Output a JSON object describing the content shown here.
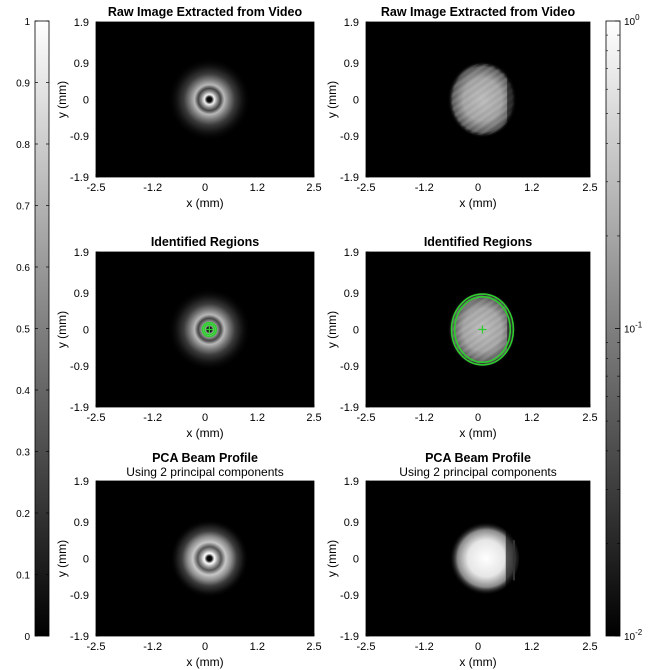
{
  "chart_data": [
    {
      "type": "heatmap",
      "panel": "top-left",
      "title": "Raw Image Extracted from Video",
      "xlabel": "x (mm)",
      "ylabel": "y (mm)",
      "xticks": [
        "-2.5",
        "-1.2",
        "0",
        "1.2",
        "2.5"
      ],
      "yticks": [
        "1.9",
        "0.9",
        "0",
        "-0.9",
        "-1.9"
      ],
      "xlim": [
        -2.5,
        2.5
      ],
      "ylim": [
        -1.9,
        1.9
      ],
      "content": "ring",
      "center": [
        0.1,
        0.0
      ]
    },
    {
      "type": "heatmap",
      "panel": "top-right",
      "title": "Raw Image Extracted from Video",
      "xlabel": "x (mm)",
      "ylabel": "y (mm)",
      "xticks": [
        "-2.5",
        "-1.2",
        "0",
        "1.2",
        "2.5"
      ],
      "yticks": [
        "1.9",
        "0.9",
        "0",
        "-0.9",
        "-1.9"
      ],
      "xlim": [
        -2.5,
        2.5
      ],
      "ylim": [
        -1.9,
        1.9
      ],
      "content": "blob",
      "center": [
        0.1,
        0.0
      ]
    },
    {
      "type": "heatmap",
      "panel": "middle-left",
      "title": "Identified Regions",
      "xlabel": "x (mm)",
      "ylabel": "y (mm)",
      "xticks": [
        "-2.5",
        "-1.2",
        "0",
        "1.2",
        "2.5"
      ],
      "yticks": [
        "1.9",
        "0.9",
        "0",
        "-0.9",
        "-1.9"
      ],
      "xlim": [
        -2.5,
        2.5
      ],
      "ylim": [
        -1.9,
        1.9
      ],
      "content": "ring",
      "center": [
        0.1,
        0.0
      ],
      "region_color": "#2ecc2e",
      "regions": [
        {
          "cx": 0.1,
          "cy": 0.0,
          "rx": 0.12,
          "ry": 0.12
        },
        {
          "cx": 0.1,
          "cy": 0.0,
          "rx": 0.16,
          "ry": 0.16
        }
      ]
    },
    {
      "type": "heatmap",
      "panel": "middle-right",
      "title": "Identified Regions",
      "xlabel": "x (mm)",
      "ylabel": "y (mm)",
      "xticks": [
        "-2.5",
        "-1.2",
        "0",
        "1.2",
        "2.5"
      ],
      "yticks": [
        "1.9",
        "0.9",
        "0",
        "-0.9",
        "-1.9"
      ],
      "xlim": [
        -2.5,
        2.5
      ],
      "ylim": [
        -1.9,
        1.9
      ],
      "content": "blob",
      "center": [
        0.1,
        0.0
      ],
      "region_color": "#2ecc2e",
      "regions": [
        {
          "cx": 0.1,
          "cy": 0.0,
          "rx": 0.62,
          "ry": 0.73
        },
        {
          "cx": 0.1,
          "cy": 0.0,
          "rx": 0.69,
          "ry": 0.79
        }
      ]
    },
    {
      "type": "heatmap",
      "panel": "bottom-left",
      "title": "PCA Beam Profile",
      "subtitle": "Using 2 principal components",
      "xlabel": "x (mm)",
      "ylabel": "y (mm)",
      "xticks": [
        "-2.5",
        "-1.2",
        "0",
        "1.2",
        "2.5"
      ],
      "yticks": [
        "1.9",
        "0.9",
        "0",
        "-0.9",
        "-1.9"
      ],
      "xlim": [
        -2.5,
        2.5
      ],
      "ylim": [
        -1.9,
        1.9
      ],
      "content": "ring-smooth",
      "center": [
        0.1,
        0.0
      ]
    },
    {
      "type": "heatmap",
      "panel": "bottom-right",
      "title": "PCA Beam Profile",
      "subtitle": "Using 2 principal components",
      "xlabel": "x (mm)",
      "ylabel": "y (mm)",
      "xticks": [
        "-2.5",
        "-1.2",
        "0",
        "1.2",
        "2.5"
      ],
      "yticks": [
        "1.9",
        "0.9",
        "0",
        "-0.9",
        "-1.9"
      ],
      "xlim": [
        -2.5,
        2.5
      ],
      "ylim": [
        -1.9,
        1.9
      ],
      "content": "blob-smooth",
      "center": [
        0.1,
        0.0
      ]
    }
  ],
  "colorbars": [
    {
      "name": "linear",
      "scale": "linear",
      "range": [
        0,
        1
      ],
      "ticks": [
        "1",
        "0.9",
        "0.8",
        "0.7",
        "0.6",
        "0.5",
        "0.4",
        "0.3",
        "0.2",
        "0.1",
        "0"
      ]
    },
    {
      "name": "log",
      "scale": "log",
      "range": [
        0.01,
        1
      ],
      "major_ticks": [
        {
          "base": "10",
          "exp": "0"
        },
        {
          "base": "10",
          "exp": "-1"
        },
        {
          "base": "10",
          "exp": "-2"
        }
      ]
    }
  ]
}
